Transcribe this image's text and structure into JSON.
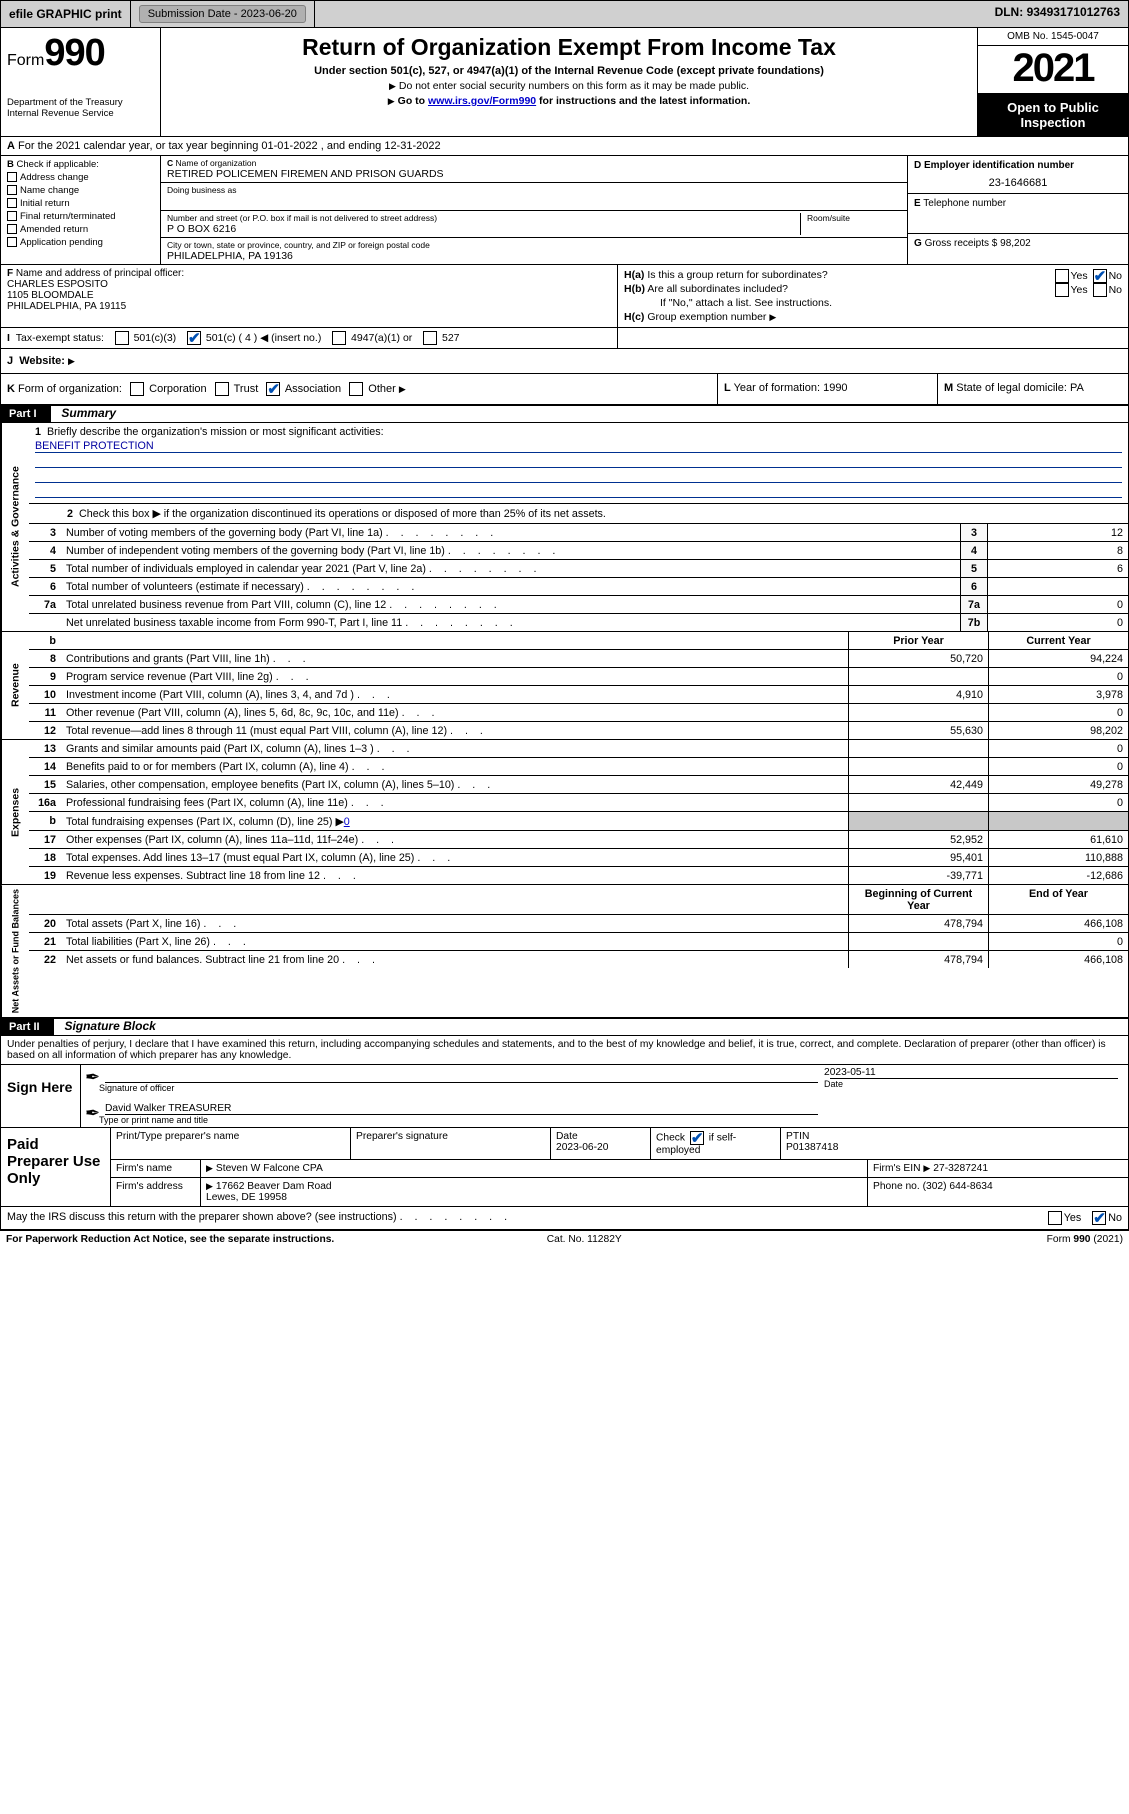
{
  "topbar": {
    "efile": "efile GRAPHIC print",
    "subdate_lbl": "Submission Date - ",
    "subdate": "2023-06-20",
    "dln_lbl": "DLN: ",
    "dln": "93493171012763"
  },
  "header": {
    "form_word": "Form",
    "form_num": "990",
    "dept": "Department of the Treasury",
    "irs": "Internal Revenue Service",
    "title": "Return of Organization Exempt From Income Tax",
    "sub1": "Under section 501(c), 527, or 4947(a)(1) of the Internal Revenue Code (except private foundations)",
    "sub2a": "Do not enter social security numbers on this form as it may be made public.",
    "sub2b_pre": "Go to ",
    "sub2b_link": "www.irs.gov/Form990",
    "sub2b_post": " for instructions and the latest information.",
    "omb": "OMB No. 1545-0047",
    "year": "2021",
    "open": "Open to Public Inspection"
  },
  "rowA": {
    "text": "For the 2021 calendar year, or tax year beginning 01-01-2022    , and ending 12-31-2022",
    "prefix": "A"
  },
  "B": {
    "hdr": "Check if applicable:",
    "items": [
      "Address change",
      "Name change",
      "Initial return",
      "Final return/terminated",
      "Amended return",
      "Application pending"
    ],
    "prefix": "B"
  },
  "C": {
    "name_lbl": "Name of organization",
    "name": "RETIRED POLICEMEN FIREMEN AND PRISON GUARDS",
    "dba_lbl": "Doing business as",
    "addr_lbl": "Number and street (or P.O. box if mail is not delivered to street address)",
    "room_lbl": "Room/suite",
    "addr": "P O BOX 6216",
    "city_lbl": "City or town, state or province, country, and ZIP or foreign postal code",
    "city": "PHILADELPHIA, PA  19136",
    "prefix": "C"
  },
  "D": {
    "lbl": "Employer identification number",
    "val": "23-1646681",
    "prefix": "D"
  },
  "E": {
    "lbl": "Telephone number",
    "val": "",
    "prefix": "E"
  },
  "G": {
    "lbl": "Gross receipts $",
    "val": "98,202",
    "prefix": "G"
  },
  "F": {
    "lbl": "Name and address of principal officer:",
    "name": "CHARLES ESPOSITO",
    "addr1": "1105 BLOOMDALE",
    "addr2": "PHILADELPHIA, PA  19115",
    "prefix": "F"
  },
  "H": {
    "a_lbl": "Is this a group return for subordinates?",
    "b_lbl": "Are all subordinates included?",
    "b_note": "If \"No,\" attach a list. See instructions.",
    "c_lbl": "Group exemption number",
    "yes": "Yes",
    "no": "No",
    "ha": "H(a)",
    "hb": "H(b)",
    "hc": "H(c)"
  },
  "I": {
    "lbl": "Tax-exempt status:",
    "opts": [
      "501(c)(3)",
      "501(c) ( 4 ) ◀ (insert no.)",
      "4947(a)(1) or",
      "527"
    ],
    "prefix": "I"
  },
  "J": {
    "lbl": "Website:",
    "prefix": "J"
  },
  "K": {
    "lbl": "Form of organization:",
    "opts": [
      "Corporation",
      "Trust",
      "Association",
      "Other"
    ],
    "L_lbl": "Year of formation:",
    "L_val": "1990",
    "M_lbl": "State of legal domicile:",
    "M_val": "PA",
    "prefix": "K",
    "Lp": "L",
    "Mp": "M"
  },
  "part1": {
    "label": "Part I",
    "title": "Summary"
  },
  "briefly": {
    "num": "1",
    "text": "Briefly describe the organization's mission or most significant activities:",
    "val": "BENEFIT PROTECTION"
  },
  "line2": {
    "num": "2",
    "text": "Check this box ▶      if the organization discontinued its operations or disposed of more than 25% of its net assets."
  },
  "sections": {
    "ag": "Activities & Governance",
    "rev": "Revenue",
    "exp": "Expenses",
    "na": "Net Assets or Fund Balances"
  },
  "ag_lines": [
    {
      "n": "3",
      "t": "Number of voting members of the governing body (Part VI, line 1a)",
      "c": "3",
      "v": "12"
    },
    {
      "n": "4",
      "t": "Number of independent voting members of the governing body (Part VI, line 1b)",
      "c": "4",
      "v": "8"
    },
    {
      "n": "5",
      "t": "Total number of individuals employed in calendar year 2021 (Part V, line 2a)",
      "c": "5",
      "v": "6"
    },
    {
      "n": "6",
      "t": "Total number of volunteers (estimate if necessary)",
      "c": "6",
      "v": ""
    },
    {
      "n": "7a",
      "t": "Total unrelated business revenue from Part VIII, column (C), line 12",
      "c": "7a",
      "v": "0"
    },
    {
      "n": "",
      "t": "Net unrelated business taxable income from Form 990-T, Part I, line 11",
      "c": "7b",
      "v": "0"
    }
  ],
  "pycy": {
    "b": "b",
    "py": "Prior Year",
    "cy": "Current Year"
  },
  "rev_lines": [
    {
      "n": "8",
      "t": "Contributions and grants (Part VIII, line 1h)",
      "py": "50,720",
      "cy": "94,224"
    },
    {
      "n": "9",
      "t": "Program service revenue (Part VIII, line 2g)",
      "py": "",
      "cy": "0"
    },
    {
      "n": "10",
      "t": "Investment income (Part VIII, column (A), lines 3, 4, and 7d )",
      "py": "4,910",
      "cy": "3,978"
    },
    {
      "n": "11",
      "t": "Other revenue (Part VIII, column (A), lines 5, 6d, 8c, 9c, 10c, and 11e)",
      "py": "",
      "cy": "0"
    },
    {
      "n": "12",
      "t": "Total revenue—add lines 8 through 11 (must equal Part VIII, column (A), line 12)",
      "py": "55,630",
      "cy": "98,202"
    }
  ],
  "exp_lines": [
    {
      "n": "13",
      "t": "Grants and similar amounts paid (Part IX, column (A), lines 1–3 )",
      "py": "",
      "cy": "0"
    },
    {
      "n": "14",
      "t": "Benefits paid to or for members (Part IX, column (A), line 4)",
      "py": "",
      "cy": "0"
    },
    {
      "n": "15",
      "t": "Salaries, other compensation, employee benefits (Part IX, column (A), lines 5–10)",
      "py": "42,449",
      "cy": "49,278"
    },
    {
      "n": "16a",
      "t": "Professional fundraising fees (Part IX, column (A), line 11e)",
      "py": "",
      "cy": "0"
    }
  ],
  "exp_16b": {
    "n": "b",
    "t": "Total fundraising expenses (Part IX, column (D), line 25) ▶",
    "v": "0"
  },
  "exp_lines2": [
    {
      "n": "17",
      "t": "Other expenses (Part IX, column (A), lines 11a–11d, 11f–24e)",
      "py": "52,952",
      "cy": "61,610"
    },
    {
      "n": "18",
      "t": "Total expenses. Add lines 13–17 (must equal Part IX, column (A), line 25)",
      "py": "95,401",
      "cy": "110,888"
    },
    {
      "n": "19",
      "t": "Revenue less expenses. Subtract line 18 from line 12",
      "py": "-39,771",
      "cy": "-12,686"
    }
  ],
  "na_hdr": {
    "b": "Beginning of Current Year",
    "e": "End of Year"
  },
  "na_lines": [
    {
      "n": "20",
      "t": "Total assets (Part X, line 16)",
      "py": "478,794",
      "cy": "466,108"
    },
    {
      "n": "21",
      "t": "Total liabilities (Part X, line 26)",
      "py": "",
      "cy": "0"
    },
    {
      "n": "22",
      "t": "Net assets or fund balances. Subtract line 21 from line 20",
      "py": "478,794",
      "cy": "466,108"
    }
  ],
  "part2": {
    "label": "Part II",
    "title": "Signature Block"
  },
  "sig": {
    "intro": "Under penalties of perjury, I declare that I have examined this return, including accompanying schedules and statements, and to the best of my knowledge and belief, it is true, correct, and complete. Declaration of preparer (other than officer) is based on all information of which preparer has any knowledge.",
    "here": "Sign Here",
    "sig_lbl": "Signature of officer",
    "date_lbl": "Date",
    "date": "2023-05-11",
    "name": "David Walker TREASURER",
    "name_lbl": "Type or print name and title"
  },
  "prep": {
    "here": "Paid Preparer Use Only",
    "c1": "Print/Type preparer's name",
    "c2": "Preparer's signature",
    "c3": "Date",
    "c3v": "2023-06-20",
    "c4a": "Check",
    "c4b": "if self-employed",
    "c5": "PTIN",
    "c5v": "P01387418",
    "firm_name_lbl": "Firm's name",
    "firm_name": "Steven W Falcone CPA",
    "firm_ein_lbl": "Firm's EIN",
    "firm_ein": "27-3287241",
    "firm_addr_lbl": "Firm's address",
    "firm_addr1": "17662 Beaver Dam Road",
    "firm_addr2": "Lewes, DE  19958",
    "phone_lbl": "Phone no.",
    "phone": "(302) 644-8634"
  },
  "may": {
    "text": "May the IRS discuss this return with the preparer shown above? (see instructions)",
    "yes": "Yes",
    "no": "No"
  },
  "foot": {
    "pra": "For Paperwork Reduction Act Notice, see the separate instructions.",
    "cat": "Cat. No. 11282Y",
    "form": "Form 990 (2021)"
  }
}
